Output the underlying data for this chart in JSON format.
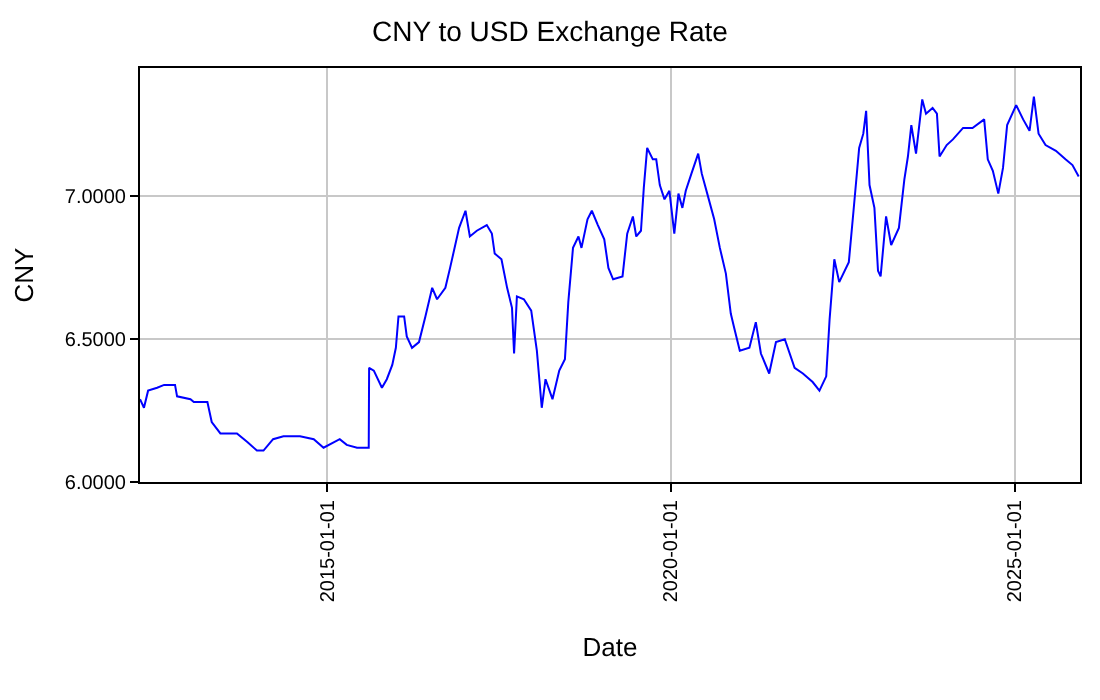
{
  "chart_data": {
    "type": "line",
    "title": "CNY to USD Exchange Rate",
    "xlabel": "Date",
    "ylabel": "CNY",
    "xlim": [
      "2012-04-12",
      "2025-12-13"
    ],
    "xticks": [
      {
        "value": "2015-01-01",
        "label": "2015-01-01"
      },
      {
        "value": "2020-01-01",
        "label": "2020-01-01"
      },
      {
        "value": "2025-01-01",
        "label": "2025-01-01"
      }
    ],
    "ylim": [
      6.0,
      7.45
    ],
    "yticks": [
      {
        "value": 6.0,
        "label": "6.0000"
      },
      {
        "value": 6.5,
        "label": "6.5000"
      },
      {
        "value": 7.0,
        "label": "7.0000"
      }
    ],
    "grid": true,
    "marker": "none",
    "line_style": "solid",
    "series": [
      {
        "color": "#0000ff",
        "x": [
          "2012-04-12",
          "2012-05-03",
          "2012-05-25",
          "2012-07-12",
          "2012-08-18",
          "2012-10-15",
          "2012-10-26",
          "2013-01-05",
          "2013-01-23",
          "2013-04-05",
          "2013-04-28",
          "2013-06-13",
          "2013-09-09",
          "2013-11-03",
          "2013-12-24",
          "2014-01-28",
          "2014-03-20",
          "2014-05-14",
          "2014-08-10",
          "2014-10-22",
          "2014-12-13",
          "2015-02-07",
          "2015-03-09",
          "2015-04-15",
          "2015-06-09",
          "2015-08-10",
          "2015-08-12",
          "2015-09-06",
          "2015-10-19",
          "2015-11-14",
          "2015-12-13",
          "2016-01-01",
          "2016-01-15",
          "2016-02-14",
          "2016-02-28",
          "2016-03-27",
          "2016-05-03",
          "2016-06-06",
          "2016-07-12",
          "2016-08-07",
          "2016-09-20",
          "2016-10-15",
          "2016-12-02",
          "2017-01-05",
          "2017-01-28",
          "2017-03-06",
          "2017-04-28",
          "2017-05-25",
          "2017-06-09",
          "2017-07-15",
          "2017-08-14",
          "2017-09-09",
          "2017-09-20",
          "2017-10-05",
          "2017-11-11",
          "2017-12-20",
          "2018-01-19",
          "2018-02-14",
          "2018-03-06",
          "2018-04-12",
          "2018-05-18",
          "2018-06-17",
          "2018-07-05",
          "2018-07-30",
          "2018-08-28",
          "2018-09-13",
          "2018-10-15",
          "2018-11-07",
          "2018-12-09",
          "2019-01-12",
          "2019-02-03",
          "2019-02-28",
          "2019-04-19",
          "2019-05-14",
          "2019-06-13",
          "2019-07-01",
          "2019-07-26",
          "2019-08-10",
          "2019-08-28",
          "2019-09-27",
          "2019-10-15",
          "2019-11-03",
          "2019-11-28",
          "2019-12-24",
          "2020-01-19",
          "2020-02-10",
          "2020-03-02",
          "2020-03-20",
          "2020-04-19",
          "2020-05-25",
          "2020-06-13",
          "2020-07-12",
          "2020-08-18",
          "2020-09-17",
          "2020-10-19",
          "2020-11-14",
          "2020-12-02",
          "2021-01-01",
          "2021-02-21",
          "2021-03-27",
          "2021-04-23",
          "2021-06-06",
          "2021-07-12",
          "2021-08-28",
          "2021-10-19",
          "2021-12-02",
          "2022-01-23",
          "2022-02-28",
          "2022-04-05",
          "2022-04-23",
          "2022-05-18",
          "2022-06-13",
          "2022-08-03",
          "2022-08-28",
          "2022-09-27",
          "2022-10-19",
          "2022-11-03",
          "2022-11-21",
          "2022-12-17",
          "2023-01-05",
          "2023-01-19",
          "2023-02-17",
          "2023-03-16",
          "2023-04-26",
          "2023-05-25",
          "2023-06-13",
          "2023-07-01",
          "2023-07-26",
          "2023-08-28",
          "2023-09-17",
          "2023-10-22",
          "2023-11-14",
          "2023-11-28",
          "2024-01-05",
          "2024-02-07",
          "2024-04-01",
          "2024-05-21",
          "2024-07-22",
          "2024-08-10",
          "2024-09-06",
          "2024-10-05",
          "2024-10-30",
          "2024-11-21",
          "2025-01-08",
          "2025-02-14",
          "2025-03-20",
          "2025-04-12",
          "2025-05-07",
          "2025-06-13",
          "2025-08-07",
          "2025-09-27",
          "2025-11-03",
          "2025-12-06"
        ],
        "values": [
          6.29,
          6.26,
          6.32,
          6.33,
          6.34,
          6.34,
          6.3,
          6.29,
          6.28,
          6.28,
          6.21,
          6.17,
          6.17,
          6.14,
          6.11,
          6.11,
          6.15,
          6.16,
          6.16,
          6.15,
          6.12,
          6.14,
          6.15,
          6.13,
          6.12,
          6.12,
          6.4,
          6.39,
          6.33,
          6.36,
          6.41,
          6.47,
          6.58,
          6.58,
          6.51,
          6.47,
          6.49,
          6.58,
          6.68,
          6.64,
          6.68,
          6.75,
          6.89,
          6.95,
          6.86,
          6.88,
          6.9,
          6.87,
          6.8,
          6.78,
          6.68,
          6.61,
          6.45,
          6.65,
          6.64,
          6.6,
          6.46,
          6.26,
          6.36,
          6.29,
          6.39,
          6.43,
          6.63,
          6.82,
          6.86,
          6.82,
          6.92,
          6.95,
          6.9,
          6.85,
          6.75,
          6.71,
          6.72,
          6.87,
          6.93,
          6.86,
          6.88,
          7.03,
          7.17,
          7.13,
          7.13,
          7.04,
          6.99,
          7.02,
          6.87,
          7.01,
          6.96,
          7.02,
          7.08,
          7.15,
          7.08,
          7.01,
          6.92,
          6.82,
          6.73,
          6.59,
          6.54,
          6.46,
          6.47,
          6.56,
          6.45,
          6.38,
          6.49,
          6.5,
          6.4,
          6.38,
          6.35,
          6.32,
          6.37,
          6.57,
          6.78,
          6.7,
          6.77,
          6.95,
          7.17,
          7.22,
          7.3,
          7.04,
          6.96,
          6.74,
          6.72,
          6.93,
          6.83,
          6.89,
          7.06,
          7.14,
          7.25,
          7.15,
          7.34,
          7.29,
          7.31,
          7.29,
          7.14,
          7.18,
          7.2,
          7.24,
          7.24,
          7.27,
          7.13,
          7.09,
          7.01,
          7.1,
          7.25,
          7.32,
          7.27,
          7.23,
          7.35,
          7.22,
          7.18,
          7.16,
          7.13,
          7.11,
          7.07
        ]
      }
    ]
  }
}
